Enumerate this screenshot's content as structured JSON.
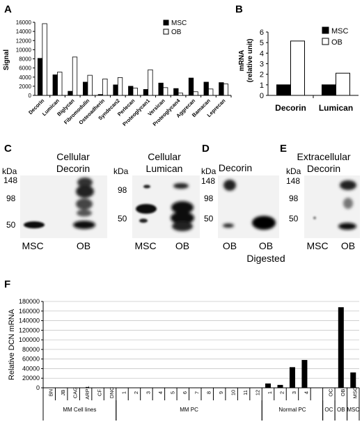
{
  "panel_labels": {
    "A": "A",
    "B": "B",
    "C": "C",
    "D": "D",
    "E": "E",
    "F": "F"
  },
  "chart_data": [
    {
      "id": "A",
      "type": "bar",
      "title": "",
      "xlabel": "",
      "ylabel": "Signal",
      "ylim": [
        0,
        16000
      ],
      "yticks": [
        "0",
        "2000",
        "4000",
        "6000",
        "8000",
        "10000",
        "12000",
        "14000",
        "16000"
      ],
      "categories": [
        "Decorin",
        "Lumican",
        "Biglycan",
        "Fibromodulin",
        "Osteoadherin",
        "Syndecan2",
        "Perlecan",
        "Proteoglycan1",
        "Versican",
        "Proteoglycan4",
        "Aggrecan",
        "Bamacan",
        "Leprecan"
      ],
      "series": [
        {
          "name": "MSC",
          "color": "#000000",
          "values": [
            8100,
            4500,
            900,
            2900,
            200,
            2300,
            2000,
            1300,
            2700,
            1500,
            3800,
            2900,
            2800
          ]
        },
        {
          "name": "OB",
          "color": "#ffffff",
          "values": [
            15700,
            5100,
            8400,
            4400,
            3600,
            3900,
            1600,
            5600,
            1700,
            500,
            800,
            1400,
            2500
          ]
        }
      ],
      "legend": "top-right"
    },
    {
      "id": "B",
      "type": "bar",
      "title": "",
      "ylabel_lines": [
        "mRNA",
        "(relative unit)"
      ],
      "ylim": [
        0,
        6
      ],
      "yticks": [
        "0",
        "1",
        "2",
        "3",
        "4",
        "5",
        "6"
      ],
      "categories": [
        "Decorin",
        "Lumican"
      ],
      "series": [
        {
          "name": "MSC",
          "color": "#000000",
          "values": [
            1,
            1
          ]
        },
        {
          "name": "OB",
          "color": "#ffffff",
          "values": [
            5.15,
            2.1
          ]
        }
      ],
      "legend": "top-right"
    },
    {
      "id": "F",
      "type": "bar",
      "ylabel": "Relative DCN mRNA",
      "ylim": [
        0,
        180000
      ],
      "yticks": [
        "0",
        "20000",
        "40000",
        "60000",
        "80000",
        "100000",
        "120000",
        "140000",
        "160000",
        "180000"
      ],
      "categories": [
        "BN",
        "JB",
        "CAG",
        "ARP1",
        "CF",
        "DNC",
        "1",
        "2",
        "3",
        "4",
        "5",
        "6",
        "7",
        "8",
        "9",
        "10",
        "11",
        "12",
        "1",
        "2",
        "3",
        "4",
        "",
        "OC",
        "OB",
        "MSC"
      ],
      "values": [
        0,
        0,
        0,
        0,
        0,
        0,
        0,
        0,
        0,
        0,
        0,
        0,
        0,
        0,
        0,
        0,
        0,
        0,
        9000,
        6000,
        43000,
        58000,
        0,
        0,
        168000,
        32000
      ],
      "groups": [
        "MM Cell lines",
        "MM PC",
        "Normal PC",
        "OC",
        "OB",
        "MSC"
      ]
    }
  ],
  "blots": {
    "C1": {
      "title_lines": [
        "Cellular",
        "Decorin"
      ],
      "kda": "kDa",
      "markers": [
        "148",
        "98",
        "50"
      ],
      "lanes": [
        "MSC",
        "OB"
      ]
    },
    "C2": {
      "title_lines": [
        "Cellular",
        "Lumican"
      ],
      "kda": "kDa",
      "markers": [
        "98",
        "50"
      ],
      "lanes": [
        "MSC",
        "OB"
      ]
    },
    "D": {
      "title": "Decorin",
      "kda": "kDa",
      "markers": [
        "148",
        "98",
        "50"
      ],
      "lanes": [
        "OB",
        "OB"
      ],
      "lane2_sub": "Digested"
    },
    "E": {
      "title_lines": [
        "Extracellular",
        "Decorin"
      ],
      "kda": "kDa",
      "markers": [
        "148",
        "98",
        "50"
      ],
      "lanes": [
        "MSC",
        "OB"
      ]
    }
  }
}
